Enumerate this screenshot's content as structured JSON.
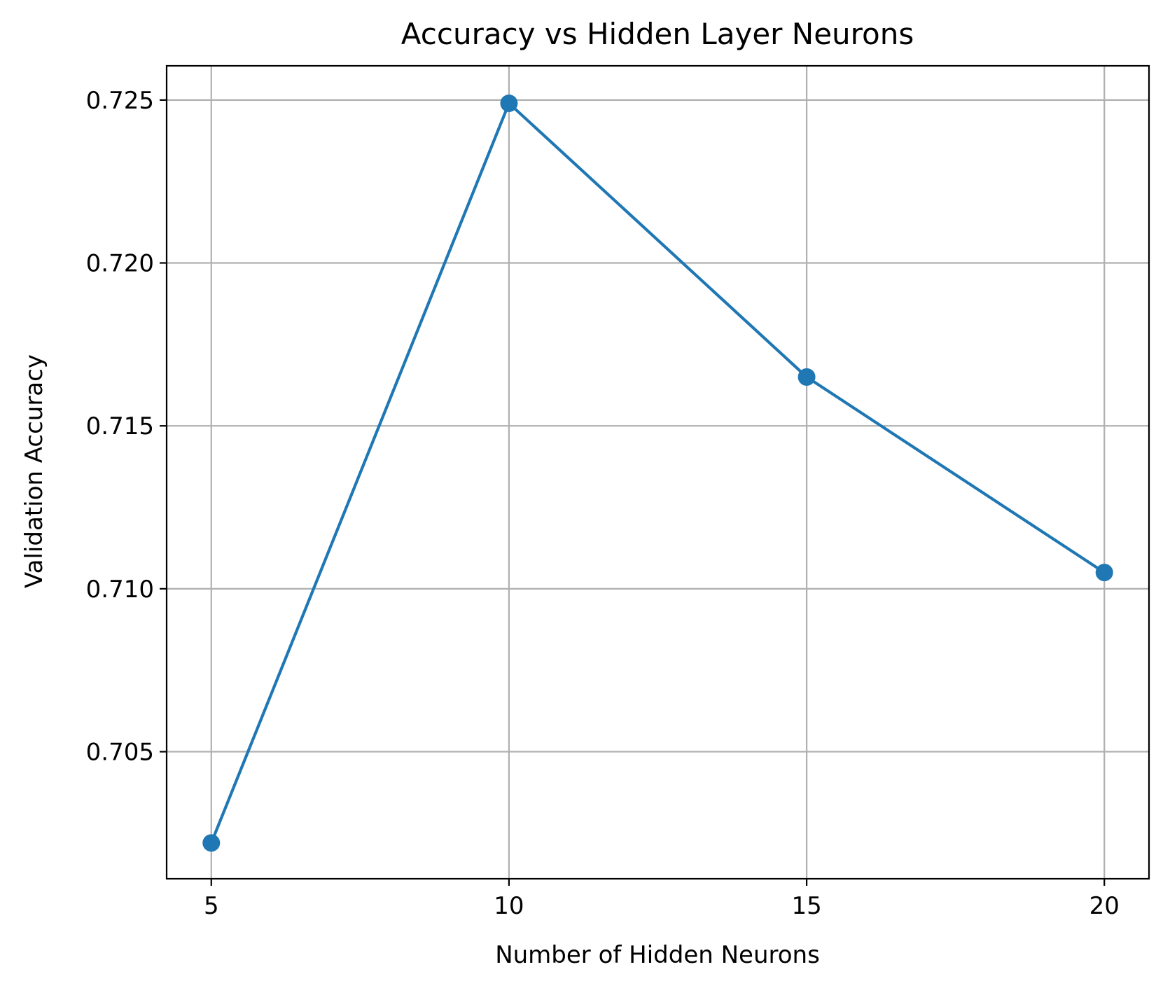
{
  "chart_data": {
    "type": "line",
    "title": "Accuracy vs Hidden Layer Neurons",
    "xlabel": "Number of Hidden Neurons",
    "ylabel": "Validation Accuracy",
    "x": [
      5,
      10,
      15,
      20
    ],
    "series": [
      {
        "name": "Validation Accuracy",
        "values": [
          0.7022,
          0.7249,
          0.7165,
          0.7105
        ],
        "color": "#1f77b4",
        "marker": "circle"
      }
    ],
    "xticks": [
      5,
      10,
      15,
      20
    ],
    "xtick_labels": [
      "5",
      "10",
      "15",
      "20"
    ],
    "yticks": [
      0.705,
      0.71,
      0.715,
      0.72,
      0.725
    ],
    "ytick_labels": [
      "0.705",
      "0.710",
      "0.715",
      "0.720",
      "0.725"
    ],
    "xlim": [
      4.25,
      20.75
    ],
    "ylim": [
      0.7011,
      0.72605
    ],
    "grid": true,
    "legend": "none"
  }
}
